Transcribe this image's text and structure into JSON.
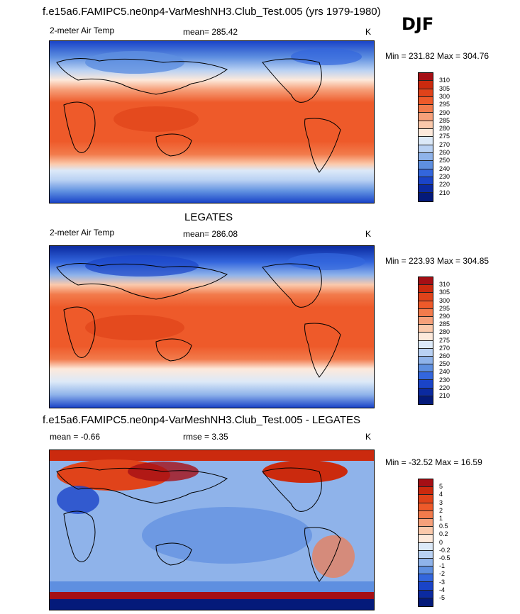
{
  "header": {
    "season": "DJF"
  },
  "chart_data": [
    {
      "type": "heatmap",
      "title": "f.e15a6.FAMIPC5.ne0np4-VarMeshNH3.Club_Test.005 (yrs 1979-1980)",
      "left_label": "2-meter Air Temp",
      "center_label": "mean= 285.42",
      "right_label": "K",
      "minmax": "Min = 231.82 Max = 304.76",
      "levels": [
        "310",
        "305",
        "300",
        "295",
        "290",
        "285",
        "280",
        "275",
        "270",
        "260",
        "250",
        "240",
        "230",
        "220",
        "210"
      ],
      "colors": [
        "#a50f15",
        "#cb2a0e",
        "#e0431a",
        "#ee5a2a",
        "#f27b4c",
        "#f6a07a",
        "#fbc9ab",
        "#fde9db",
        "#dce9f8",
        "#b9d1f3",
        "#8fb3ea",
        "#5e8fe0",
        "#3366dd",
        "#1a44c8",
        "#0b2aa0",
        "#041a7a"
      ]
    },
    {
      "type": "heatmap",
      "title": "LEGATES",
      "left_label": "2-meter Air Temp",
      "center_label": "mean= 286.08",
      "right_label": "K",
      "minmax": "Min = 223.93 Max = 304.85",
      "levels": [
        "310",
        "305",
        "300",
        "295",
        "290",
        "285",
        "280",
        "275",
        "270",
        "260",
        "250",
        "240",
        "230",
        "220",
        "210"
      ],
      "colors": [
        "#a50f15",
        "#cb2a0e",
        "#e0431a",
        "#ee5a2a",
        "#f27b4c",
        "#f6a07a",
        "#fbc9ab",
        "#fde9db",
        "#dce9f8",
        "#b9d1f3",
        "#8fb3ea",
        "#5e8fe0",
        "#3366dd",
        "#1a44c8",
        "#0b2aa0",
        "#041a7a"
      ]
    },
    {
      "type": "heatmap",
      "title": "f.e15a6.FAMIPC5.ne0np4-VarMeshNH3.Club_Test.005 - LEGATES",
      "left_label": "mean =  -0.66",
      "center_label": "rmse =   3.35",
      "right_label": "K",
      "minmax": "Min = -32.52 Max =  16.59",
      "levels": [
        "5",
        "4",
        "3",
        "2",
        "1",
        "0.5",
        "0.2",
        "0",
        "-0.2",
        "-0.5",
        "-1",
        "-2",
        "-3",
        "-4",
        "-5"
      ],
      "colors": [
        "#a50f15",
        "#cb2a0e",
        "#e0431a",
        "#ee5a2a",
        "#f27b4c",
        "#f6a07a",
        "#fbc9ab",
        "#fde9db",
        "#dce9f8",
        "#b9d1f3",
        "#8fb3ea",
        "#5e8fe0",
        "#3366dd",
        "#1a44c8",
        "#0b2aa0",
        "#041a7a"
      ]
    }
  ]
}
